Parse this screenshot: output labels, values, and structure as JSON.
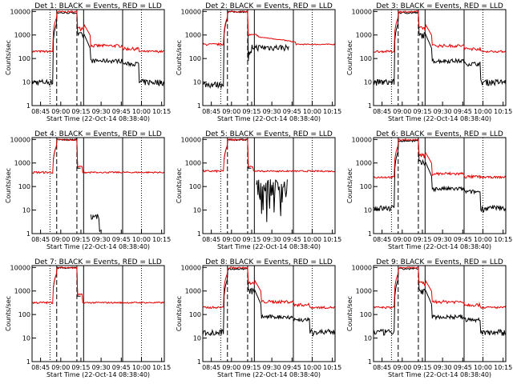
{
  "chart_data": {
    "type": "line",
    "yscale": "log",
    "ylim": [
      1,
      12000
    ],
    "xlim": [
      "08:38:40",
      "10:17"
    ],
    "ylabel": "Counts/sec",
    "xlabel": "Start Time (22-Oct-14 08:38:40)",
    "x_ticks": [
      "08:45",
      "09:00",
      "09:15",
      "09:30",
      "09:45",
      "10:00",
      "10:15"
    ],
    "y_ticks": [
      "1",
      "10",
      "100",
      "1000",
      "10000"
    ],
    "colors": {
      "events": "#000000",
      "lld": "#e00000"
    },
    "marker_lines": {
      "dashed": [
        "08:57",
        "09:12"
      ],
      "solid": [
        "09:17",
        "09:46"
      ],
      "dotted": [
        "08:52",
        "10:00"
      ]
    },
    "panels": [
      {
        "title": "Det 1: BLACK = Events, RED = LLD",
        "profile": "pileup",
        "base_black": 10,
        "base_red": 200
      },
      {
        "title": "Det 2: BLACK = Events, RED = LLD",
        "profile": "high",
        "base_black": 8,
        "base_red": 400
      },
      {
        "title": "Det 3: BLACK = Events, RED = LLD",
        "profile": "pileup",
        "base_black": 10,
        "base_red": 200
      },
      {
        "title": "Det 4: BLACK = Events, RED = LLD",
        "profile": "sparse",
        "base_black": 0,
        "base_red": 400
      },
      {
        "title": "Det 5: BLACK = Events, RED = LLD",
        "profile": "sparse2",
        "base_black": 0,
        "base_red": 450
      },
      {
        "title": "Det 6: BLACK = Events, RED = LLD",
        "profile": "pileup",
        "base_black": 12,
        "base_red": 250
      },
      {
        "title": "Det 7: BLACK = Events, RED = LLD",
        "profile": "flat",
        "base_black": 0,
        "base_red": 320
      },
      {
        "title": "Det 8: BLACK = Events, RED = LLD",
        "profile": "pileup",
        "base_black": 18,
        "base_red": 200
      },
      {
        "title": "Det 9: BLACK = Events, RED = LLD",
        "profile": "pileup",
        "base_black": 18,
        "base_red": 200
      }
    ]
  }
}
